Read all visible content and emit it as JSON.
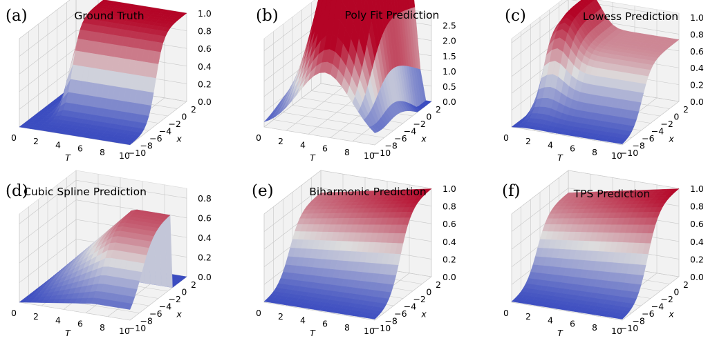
{
  "chart_data": [
    {
      "type": "surface",
      "panel_label": "(a)",
      "title": "Ground Truth",
      "xlabel": "T",
      "ylabel": "x",
      "x_ticks": [
        "0",
        "2",
        "4",
        "6",
        "8",
        "10"
      ],
      "y_ticks": [
        "−10",
        "−8",
        "−6",
        "−4",
        "−2",
        "0",
        "2"
      ],
      "z_ticks": [
        "0.0",
        "0.2",
        "0.4",
        "0.6",
        "0.8",
        "1.0"
      ],
      "zlim": [
        0,
        1.0
      ],
      "surface_profile": "sigmoid rising from 0 to 1.0 along x; step near T = 3",
      "colormap": "coolwarm"
    },
    {
      "type": "surface",
      "panel_label": "(b)",
      "title": "Poly Fit Prediction",
      "xlabel": "T",
      "ylabel": "x",
      "x_ticks": [
        "0",
        "2",
        "4",
        "6",
        "8",
        "10"
      ],
      "y_ticks": [
        "−10",
        "−8",
        "−6",
        "−4",
        "−2",
        "0",
        "2"
      ],
      "z_ticks": [
        "0.0",
        "0.5",
        "1.0",
        "1.5",
        "2.0",
        "2.5"
      ],
      "zlim": [
        0,
        2.9
      ],
      "surface_profile": "smooth dome peaking near 2.9, dipping below 0.5 at high x",
      "colormap": "coolwarm"
    },
    {
      "type": "surface",
      "panel_label": "(c)",
      "title": "Lowess Prediction",
      "xlabel": "T",
      "ylabel": "x",
      "x_ticks": [
        "0",
        "2",
        "4",
        "6",
        "8",
        "10"
      ],
      "y_ticks": [
        "−10",
        "−8",
        "−6",
        "−4",
        "−2",
        "0",
        "2"
      ],
      "z_ticks": [
        "0.0",
        "0.2",
        "0.4",
        "0.6",
        "0.8",
        "1.0"
      ],
      "zlim": [
        0,
        1.05
      ],
      "surface_profile": "steep rise near T = 3, peak then sag toward 0.7",
      "colormap": "coolwarm"
    },
    {
      "type": "surface",
      "panel_label": "(d)",
      "title": "Cubic Spline Prediction",
      "xlabel": "T",
      "ylabel": "x",
      "x_ticks": [
        "0",
        "2",
        "4",
        "6",
        "8",
        "10"
      ],
      "y_ticks": [
        "−10",
        "−8",
        "−6",
        "−4",
        "−2",
        "0",
        "2"
      ],
      "z_ticks": [
        "0.0",
        "0.2",
        "0.4",
        "0.6",
        "0.8"
      ],
      "zlim": [
        0,
        0.9
      ],
      "surface_profile": "rising to about 0.85, defined only over part of the x range",
      "colormap": "coolwarm"
    },
    {
      "type": "surface",
      "panel_label": "(e)",
      "title": "Biharmonic Prediction",
      "xlabel": "T",
      "ylabel": "x",
      "x_ticks": [
        "0",
        "2",
        "4",
        "6",
        "8",
        "10"
      ],
      "y_ticks": [
        "−10",
        "−8",
        "−6",
        "−4",
        "−2",
        "0",
        "2"
      ],
      "z_ticks": [
        "0.0",
        "0.2",
        "0.4",
        "0.6",
        "0.8",
        "1.0"
      ],
      "zlim": [
        0,
        1.0
      ],
      "surface_profile": "smooth sigmoid rising from 0 to 1.0",
      "colormap": "coolwarm"
    },
    {
      "type": "surface",
      "panel_label": "(f)",
      "title": "TPS Prediction",
      "xlabel": "T",
      "ylabel": "x",
      "x_ticks": [
        "0",
        "2",
        "4",
        "6",
        "8",
        "10"
      ],
      "y_ticks": [
        "−10",
        "−8",
        "−6",
        "−4",
        "−2",
        "0",
        "2"
      ],
      "z_ticks": [
        "0.0",
        "0.2",
        "0.4",
        "0.6",
        "0.8",
        "1.0"
      ],
      "zlim": [
        0,
        1.0
      ],
      "surface_profile": "smooth sigmoid rising from 0 to 1.0",
      "colormap": "coolwarm"
    }
  ],
  "colors": {
    "low": "#3b4cc0",
    "mid": "#dddddd",
    "high": "#b40426",
    "pane": "#f2f2f2",
    "grid": "#c8c8c8"
  }
}
